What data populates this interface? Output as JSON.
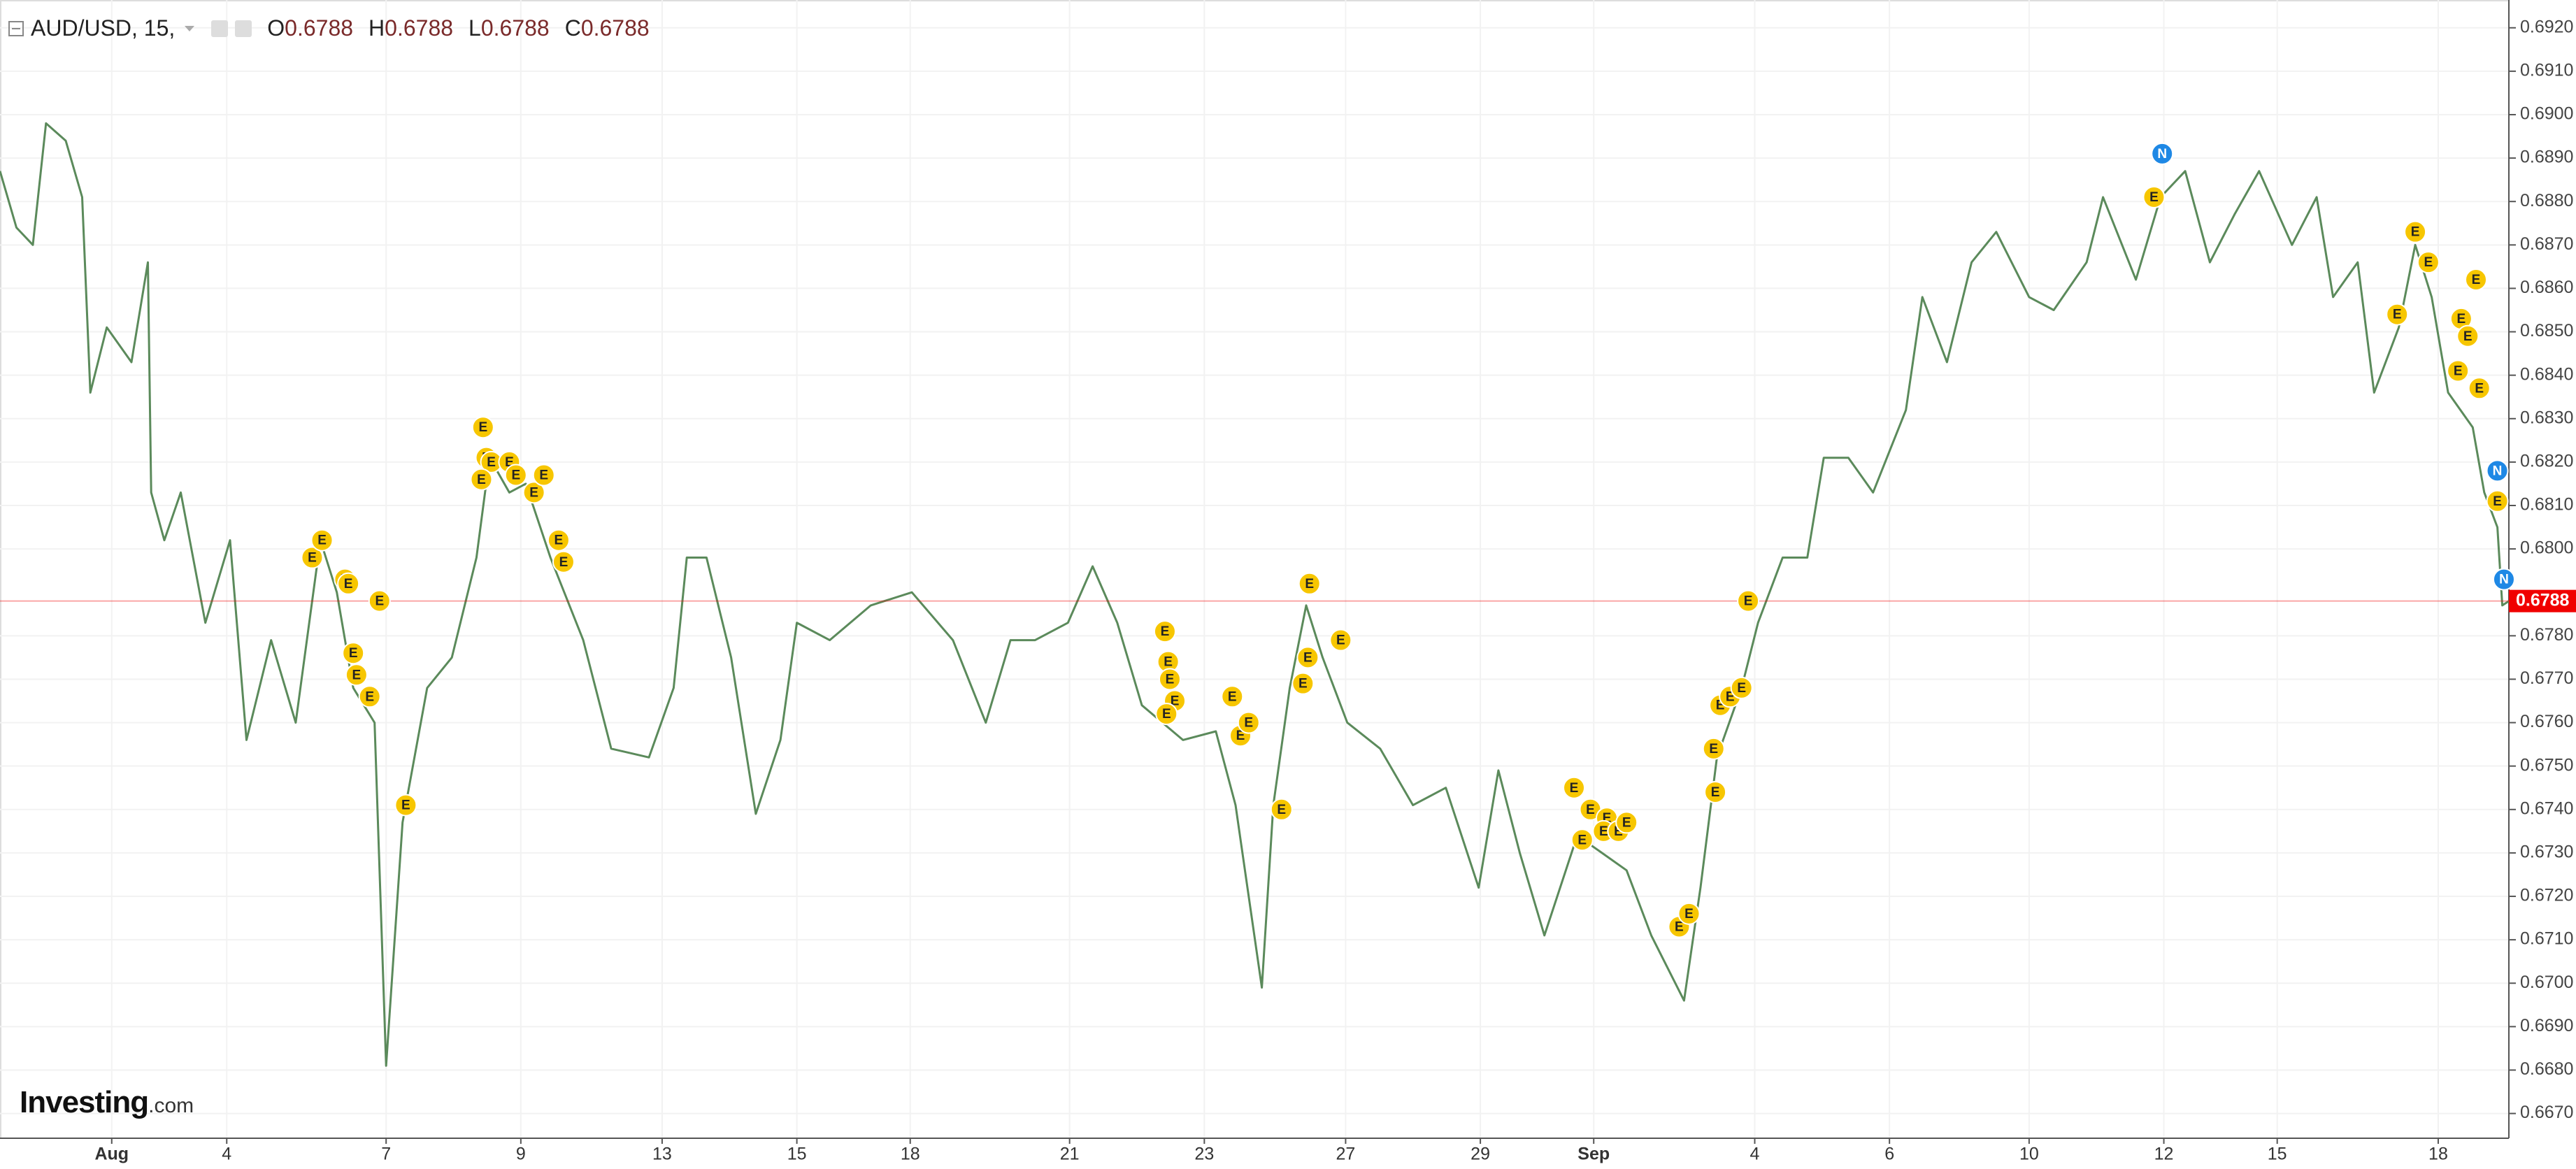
{
  "header": {
    "symbol": "AUD/USD, 15,",
    "ohlc": [
      {
        "label": "O",
        "value": "0.6788"
      },
      {
        "label": "H",
        "value": "0.6788"
      },
      {
        "label": "L",
        "value": "0.6788"
      },
      {
        "label": "C",
        "value": "0.6788"
      }
    ]
  },
  "logo": {
    "name": "Investing",
    "suffix": ".com"
  },
  "chart_data": {
    "type": "line",
    "color": "#5b8a5b",
    "xlim": [
      0,
      1527
    ],
    "ylim": [
      0.66643,
      0.69264
    ],
    "xticks": [
      {
        "value": 68,
        "label": "Aug"
      },
      {
        "value": 138,
        "label": "4"
      },
      {
        "value": 235,
        "label": "7"
      },
      {
        "value": 317,
        "label": "9"
      },
      {
        "value": 403,
        "label": "13"
      },
      {
        "value": 485,
        "label": "15"
      },
      {
        "value": 554,
        "label": "18"
      },
      {
        "value": 651,
        "label": "21"
      },
      {
        "value": 733,
        "label": "23"
      },
      {
        "value": 819,
        "label": "27"
      },
      {
        "value": 901,
        "label": "29"
      },
      {
        "value": 970,
        "label": "Sep"
      },
      {
        "value": 1068,
        "label": "4"
      },
      {
        "value": 1150,
        "label": "6"
      },
      {
        "value": 1235,
        "label": "10"
      },
      {
        "value": 1317,
        "label": "12"
      },
      {
        "value": 1386,
        "label": "15"
      },
      {
        "value": 1484,
        "label": "18"
      }
    ],
    "yticks": [
      {
        "value": 0.667,
        "label": "0.6670"
      },
      {
        "value": 0.668,
        "label": "0.6680"
      },
      {
        "value": 0.669,
        "label": "0.6690"
      },
      {
        "value": 0.67,
        "label": "0.6700"
      },
      {
        "value": 0.671,
        "label": "0.6710"
      },
      {
        "value": 0.672,
        "label": "0.6720"
      },
      {
        "value": 0.673,
        "label": "0.6730"
      },
      {
        "value": 0.674,
        "label": "0.6740"
      },
      {
        "value": 0.675,
        "label": "0.6750"
      },
      {
        "value": 0.676,
        "label": "0.6760"
      },
      {
        "value": 0.677,
        "label": "0.6770"
      },
      {
        "value": 0.678,
        "label": "0.6780"
      },
      {
        "value": 0.68,
        "label": "0.6800"
      },
      {
        "value": 0.681,
        "label": "0.6810"
      },
      {
        "value": 0.682,
        "label": "0.6820"
      },
      {
        "value": 0.683,
        "label": "0.6830"
      },
      {
        "value": 0.684,
        "label": "0.6840"
      },
      {
        "value": 0.685,
        "label": "0.6850"
      },
      {
        "value": 0.686,
        "label": "0.6860"
      },
      {
        "value": 0.687,
        "label": "0.6870"
      },
      {
        "value": 0.688,
        "label": "0.6880"
      },
      {
        "value": 0.689,
        "label": "0.6890"
      },
      {
        "value": 0.69,
        "label": "0.6900"
      },
      {
        "value": 0.691,
        "label": "0.6910"
      },
      {
        "value": 0.692,
        "label": "0.6920"
      }
    ],
    "grid": true,
    "x": [
      0,
      10,
      20,
      28,
      40,
      50,
      55,
      65,
      80,
      90,
      92,
      100,
      110,
      125,
      140,
      150,
      165,
      180,
      195,
      205,
      215,
      228,
      235,
      245,
      260,
      275,
      290,
      298,
      310,
      320,
      335,
      355,
      372,
      395,
      410,
      418,
      430,
      445,
      460,
      475,
      485,
      505,
      530,
      555,
      580,
      600,
      615,
      630,
      650,
      665,
      680,
      695,
      720,
      740,
      752,
      768,
      775,
      785,
      795,
      805,
      820,
      840,
      860,
      880,
      900,
      912,
      925,
      940,
      960,
      975,
      990,
      1005,
      1025,
      1035,
      1045,
      1060,
      1070,
      1085,
      1100,
      1110,
      1125,
      1140,
      1160,
      1170,
      1185,
      1200,
      1215,
      1235,
      1250,
      1270,
      1280,
      1300,
      1315,
      1330,
      1345,
      1360,
      1375,
      1395,
      1410,
      1420,
      1435,
      1445,
      1460,
      1470,
      1480,
      1490,
      1505,
      1512,
      1520,
      1523,
      1527
    ],
    "values": [
      0.6887,
      0.6874,
      0.687,
      0.6898,
      0.6894,
      0.6881,
      0.6836,
      0.6851,
      0.6843,
      0.6866,
      0.6813,
      0.6802,
      0.6813,
      0.6783,
      0.6802,
      0.6756,
      0.6779,
      0.676,
      0.6802,
      0.679,
      0.6768,
      0.676,
      0.6681,
      0.6737,
      0.6768,
      0.6775,
      0.6798,
      0.6821,
      0.6813,
      0.6815,
      0.6798,
      0.6779,
      0.6754,
      0.6752,
      0.6768,
      0.6798,
      0.6798,
      0.6775,
      0.6739,
      0.6756,
      0.6783,
      0.6779,
      0.6787,
      0.679,
      0.6779,
      0.676,
      0.6779,
      0.6779,
      0.6783,
      0.6796,
      0.6783,
      0.6764,
      0.6756,
      0.6758,
      0.6741,
      0.6699,
      0.6741,
      0.6768,
      0.6787,
      0.6775,
      0.676,
      0.6754,
      0.6741,
      0.6745,
      0.6722,
      0.6749,
      0.673,
      0.6711,
      0.6734,
      0.673,
      0.6726,
      0.6711,
      0.6696,
      0.6722,
      0.6752,
      0.6768,
      0.6783,
      0.6798,
      0.6798,
      0.6821,
      0.6821,
      0.6813,
      0.6832,
      0.6858,
      0.6843,
      0.6866,
      0.6873,
      0.6858,
      0.6855,
      0.6866,
      0.6881,
      0.6862,
      0.6881,
      0.6887,
      0.6866,
      0.6877,
      0.6887,
      0.687,
      0.6881,
      0.6858,
      0.6866,
      0.6836,
      0.6851,
      0.687,
      0.6858,
      0.6836,
      0.6828,
      0.6813,
      0.6805,
      0.6787,
      0.6788
    ],
    "current_price": {
      "value": 0.6788,
      "label": "0.6788",
      "color": "#f00000"
    },
    "annotations": [
      {
        "x": 190,
        "y": 0.6798,
        "label": "E"
      },
      {
        "x": 196,
        "y": 0.6802,
        "label": "E"
      },
      {
        "x": 210,
        "y": 0.6793,
        "label": "E"
      },
      {
        "x": 212,
        "y": 0.6792,
        "label": "E"
      },
      {
        "x": 231,
        "y": 0.6788,
        "label": "E"
      },
      {
        "x": 215,
        "y": 0.6776,
        "label": "E"
      },
      {
        "x": 217,
        "y": 0.6771,
        "label": "E"
      },
      {
        "x": 225,
        "y": 0.6766,
        "label": "E"
      },
      {
        "x": 247,
        "y": 0.6741,
        "label": "E"
      },
      {
        "x": 294,
        "y": 0.6828,
        "label": "E"
      },
      {
        "x": 296,
        "y": 0.6821,
        "label": "E"
      },
      {
        "x": 299,
        "y": 0.682,
        "label": "E"
      },
      {
        "x": 310,
        "y": 0.682,
        "label": "E"
      },
      {
        "x": 314,
        "y": 0.6817,
        "label": "E"
      },
      {
        "x": 293,
        "y": 0.6816,
        "label": "E"
      },
      {
        "x": 325,
        "y": 0.6813,
        "label": "E"
      },
      {
        "x": 331,
        "y": 0.6817,
        "label": "E"
      },
      {
        "x": 340,
        "y": 0.6802,
        "label": "E"
      },
      {
        "x": 343,
        "y": 0.6797,
        "label": "E"
      },
      {
        "x": 709,
        "y": 0.6781,
        "label": "E"
      },
      {
        "x": 711,
        "y": 0.6774,
        "label": "E"
      },
      {
        "x": 712,
        "y": 0.677,
        "label": "E"
      },
      {
        "x": 715,
        "y": 0.6765,
        "label": "E"
      },
      {
        "x": 710,
        "y": 0.6762,
        "label": "E"
      },
      {
        "x": 750,
        "y": 0.6766,
        "label": "E"
      },
      {
        "x": 755,
        "y": 0.6757,
        "label": "E"
      },
      {
        "x": 760,
        "y": 0.676,
        "label": "E"
      },
      {
        "x": 780,
        "y": 0.674,
        "label": "E"
      },
      {
        "x": 797,
        "y": 0.6792,
        "label": "E"
      },
      {
        "x": 796,
        "y": 0.6775,
        "label": "E"
      },
      {
        "x": 793,
        "y": 0.6769,
        "label": "E"
      },
      {
        "x": 816,
        "y": 0.6779,
        "label": "E"
      },
      {
        "x": 958,
        "y": 0.6745,
        "label": "E"
      },
      {
        "x": 968,
        "y": 0.674,
        "label": "E"
      },
      {
        "x": 963,
        "y": 0.6733,
        "label": "E"
      },
      {
        "x": 978,
        "y": 0.6738,
        "label": "E"
      },
      {
        "x": 976,
        "y": 0.6735,
        "label": "E"
      },
      {
        "x": 985,
        "y": 0.6735,
        "label": "E"
      },
      {
        "x": 990,
        "y": 0.6737,
        "label": "E"
      },
      {
        "x": 1022,
        "y": 0.6713,
        "label": "E"
      },
      {
        "x": 1028,
        "y": 0.6716,
        "label": "E"
      },
      {
        "x": 1044,
        "y": 0.6744,
        "label": "E"
      },
      {
        "x": 1043,
        "y": 0.6754,
        "label": "E"
      },
      {
        "x": 1047,
        "y": 0.6764,
        "label": "E"
      },
      {
        "x": 1053,
        "y": 0.6766,
        "label": "E"
      },
      {
        "x": 1060,
        "y": 0.6768,
        "label": "E"
      },
      {
        "x": 1064,
        "y": 0.6788,
        "label": "E"
      },
      {
        "x": 1311,
        "y": 0.6881,
        "label": "E"
      },
      {
        "x": 1470,
        "y": 0.6873,
        "label": "E"
      },
      {
        "x": 1478,
        "y": 0.6866,
        "label": "E"
      },
      {
        "x": 1459,
        "y": 0.6854,
        "label": "E"
      },
      {
        "x": 1498,
        "y": 0.6853,
        "label": "E"
      },
      {
        "x": 1502,
        "y": 0.6849,
        "label": "E"
      },
      {
        "x": 1507,
        "y": 0.6862,
        "label": "E"
      },
      {
        "x": 1496,
        "y": 0.6841,
        "label": "E"
      },
      {
        "x": 1509,
        "y": 0.6837,
        "label": "E"
      },
      {
        "x": 1520,
        "y": 0.6811,
        "label": "E"
      },
      {
        "x": 1316,
        "y": 0.6891,
        "label": "N"
      },
      {
        "x": 1520,
        "y": 0.6818,
        "label": "N"
      },
      {
        "x": 1524,
        "y": 0.6793,
        "label": "N"
      }
    ]
  }
}
